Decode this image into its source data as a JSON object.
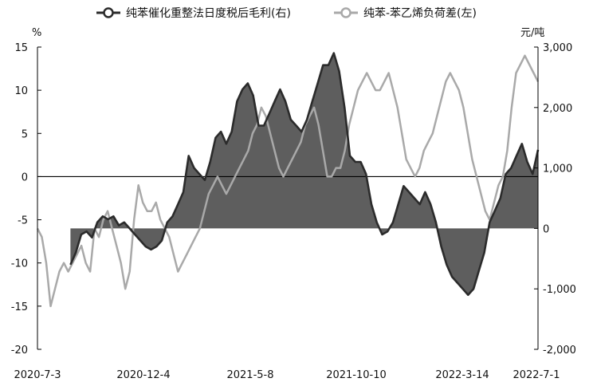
{
  "chart_data": {
    "type": "line",
    "legend": {
      "position": "top-center"
    },
    "y_left": {
      "unit": "%",
      "ticks": [
        15,
        10,
        5,
        0,
        -5,
        -10,
        -15,
        -20
      ],
      "range": [
        -20,
        15
      ]
    },
    "y_right": {
      "unit": "元/吨",
      "ticks": [
        "3,000",
        "2,000",
        "1,000",
        "0",
        "-1,000",
        "-2,000"
      ],
      "range": [
        -2000,
        3000
      ]
    },
    "x_labels": [
      "2020-7-3",
      "2020-12-4",
      "2021-5-8",
      "2021-10-10",
      "2022-3-14",
      "2022-7-1"
    ],
    "series": [
      {
        "name": "纯苯催化重整法日度税后毛利(右)",
        "axis": "right",
        "style": "area",
        "color": "#2b2b2b",
        "fill": "#5e5e5e",
        "x_range": [
          "2020-8-20",
          "2022-7-1"
        ],
        "values": [
          -600,
          -400,
          -100,
          -50,
          -150,
          100,
          200,
          150,
          200,
          50,
          100,
          0,
          -100,
          -200,
          -300,
          -350,
          -300,
          -200,
          100,
          200,
          400,
          600,
          1200,
          1000,
          900,
          800,
          1100,
          1500,
          1600,
          1400,
          1600,
          2100,
          2300,
          2400,
          2200,
          1700,
          1700,
          1900,
          2100,
          2300,
          2100,
          1800,
          1700,
          1600,
          1800,
          2100,
          2400,
          2700,
          2700,
          2900,
          2600,
          2000,
          1200,
          1100,
          1100,
          900,
          400,
          100,
          -100,
          -50,
          100,
          400,
          700,
          600,
          500,
          400,
          600,
          400,
          100,
          -300,
          -600,
          -800,
          -900,
          -1000,
          -1100,
          -1000,
          -700,
          -400,
          100,
          300,
          500,
          900,
          1000,
          1200,
          1400,
          1100,
          900,
          1300
        ]
      },
      {
        "name": "纯苯-苯乙烯负荷差(左)",
        "axis": "left",
        "style": "line",
        "color": "#a9a9a9",
        "x_range": [
          "2020-7-3",
          "2022-7-1"
        ],
        "values": [
          -6,
          -7,
          -10,
          -15,
          -13,
          -11,
          -10,
          -11,
          -10,
          -9,
          -8,
          -10,
          -11,
          -6,
          -7,
          -5,
          -4,
          -6,
          -8,
          -10,
          -13,
          -11,
          -5,
          -1,
          -3,
          -4,
          -4,
          -3,
          -5,
          -6,
          -7,
          -9,
          -11,
          -10,
          -9,
          -8,
          -7,
          -6,
          -4,
          -2,
          -1,
          0,
          -1,
          -2,
          -1,
          0,
          1,
          2,
          3,
          5,
          6,
          8,
          7,
          5,
          3,
          1,
          0,
          1,
          2,
          3,
          4,
          6,
          7,
          8,
          6,
          3,
          0,
          0,
          1,
          1,
          3,
          6,
          8,
          10,
          11,
          12,
          11,
          10,
          10,
          11,
          12,
          10,
          8,
          5,
          2,
          1,
          0,
          1,
          3,
          4,
          5,
          7,
          9,
          11,
          12,
          11,
          10,
          8,
          5,
          2,
          0,
          -2,
          -4,
          -5,
          -3,
          -1,
          0,
          3,
          8,
          12,
          13,
          14,
          13,
          12,
          11
        ]
      }
    ]
  }
}
